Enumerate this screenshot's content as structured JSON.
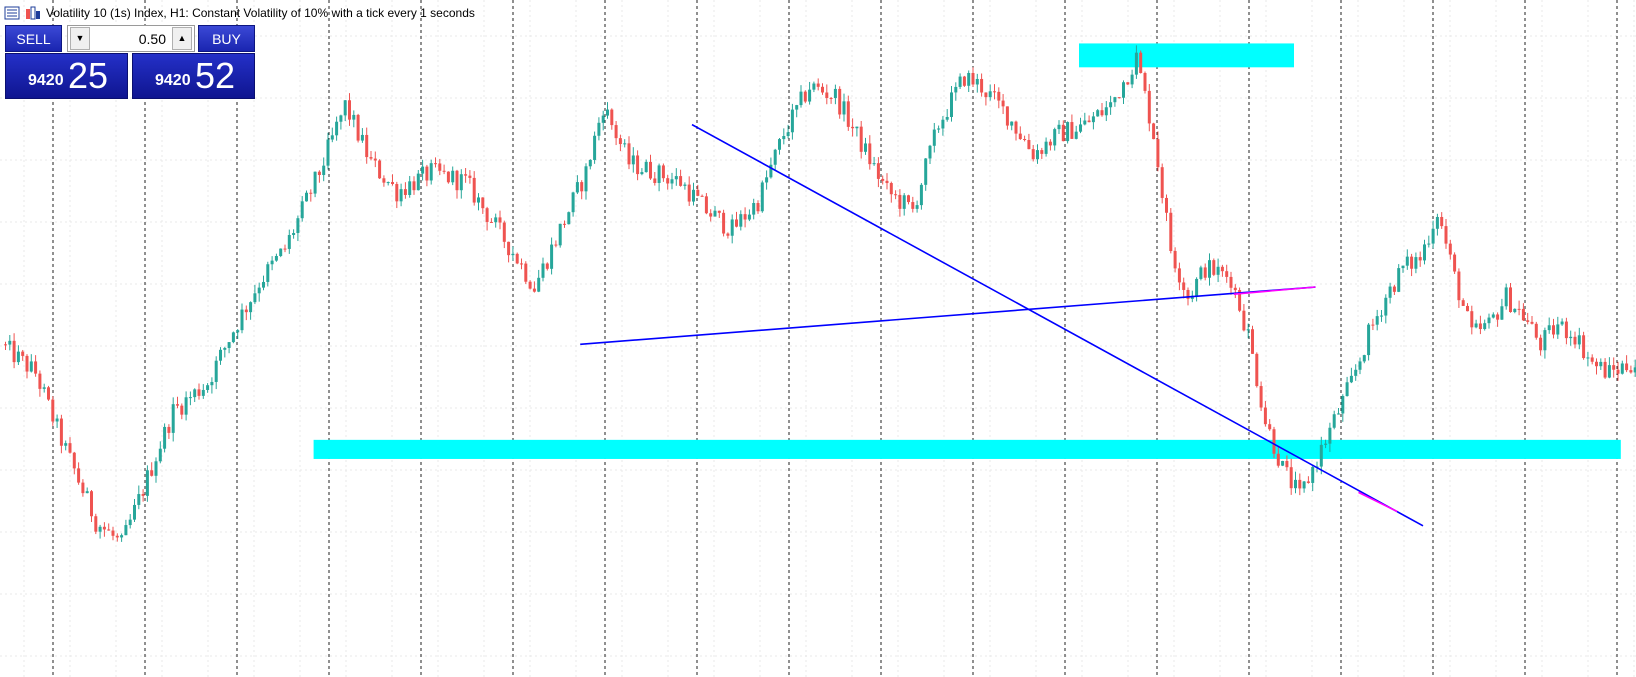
{
  "header": {
    "title": "Volatility 10 (1s) Index, H1:  Constant Volatility of 10% with a tick every 1 seconds"
  },
  "trade_panel": {
    "sell_label": "SELL",
    "buy_label": "BUY",
    "lot_value": "0.50",
    "sell_price_prefix": "9420",
    "sell_price_main": "25",
    "buy_price_prefix": "9420",
    "buy_price_main": "52"
  },
  "colors": {
    "background": "#ffffff",
    "bull_candle": "#26a69a",
    "bear_candle": "#ef5350",
    "trendline": "#0000ff",
    "zone": "#00ffff",
    "highlight": "#ff00ff",
    "panel_button": "#1a25b0"
  },
  "chart_data": {
    "type": "candlestick",
    "title": "Volatility 10 (1s) Index, H1",
    "xlabel": "",
    "ylabel": "",
    "grid": true,
    "y_range": [
      -0.22,
      1.12
    ],
    "trend_segments": [
      {
        "t": 0,
        "y": 0.42
      },
      {
        "t": 8,
        "y": 0.36
      },
      {
        "t": 14,
        "y": 0.22
      },
      {
        "t": 22,
        "y": 0.05
      },
      {
        "t": 28,
        "y": 0.0
      },
      {
        "t": 34,
        "y": 0.14
      },
      {
        "t": 40,
        "y": 0.28
      },
      {
        "t": 48,
        "y": 0.34
      },
      {
        "t": 54,
        "y": 0.45
      },
      {
        "t": 60,
        "y": 0.55
      },
      {
        "t": 66,
        "y": 0.62
      },
      {
        "t": 74,
        "y": 0.78
      },
      {
        "t": 80,
        "y": 0.92
      },
      {
        "t": 86,
        "y": 0.8
      },
      {
        "t": 92,
        "y": 0.74
      },
      {
        "t": 100,
        "y": 0.78
      },
      {
        "t": 108,
        "y": 0.76
      },
      {
        "t": 114,
        "y": 0.68
      },
      {
        "t": 120,
        "y": 0.6
      },
      {
        "t": 124,
        "y": 0.54
      },
      {
        "t": 130,
        "y": 0.66
      },
      {
        "t": 136,
        "y": 0.78
      },
      {
        "t": 140,
        "y": 0.92
      },
      {
        "t": 146,
        "y": 0.8
      },
      {
        "t": 152,
        "y": 0.78
      },
      {
        "t": 158,
        "y": 0.76
      },
      {
        "t": 164,
        "y": 0.7
      },
      {
        "t": 170,
        "y": 0.66
      },
      {
        "t": 176,
        "y": 0.72
      },
      {
        "t": 182,
        "y": 0.86
      },
      {
        "t": 188,
        "y": 0.96
      },
      {
        "t": 194,
        "y": 0.94
      },
      {
        "t": 200,
        "y": 0.84
      },
      {
        "t": 206,
        "y": 0.74
      },
      {
        "t": 212,
        "y": 0.7
      },
      {
        "t": 218,
        "y": 0.88
      },
      {
        "t": 224,
        "y": 0.98
      },
      {
        "t": 228,
        "y": 0.96
      },
      {
        "t": 234,
        "y": 0.9
      },
      {
        "t": 240,
        "y": 0.82
      },
      {
        "t": 246,
        "y": 0.86
      },
      {
        "t": 252,
        "y": 0.88
      },
      {
        "t": 258,
        "y": 0.92
      },
      {
        "t": 264,
        "y": 1.02
      },
      {
        "t": 268,
        "y": 0.86
      },
      {
        "t": 272,
        "y": 0.62
      },
      {
        "t": 276,
        "y": 0.52
      },
      {
        "t": 280,
        "y": 0.58
      },
      {
        "t": 286,
        "y": 0.56
      },
      {
        "t": 290,
        "y": 0.44
      },
      {
        "t": 294,
        "y": 0.26
      },
      {
        "t": 298,
        "y": 0.16
      },
      {
        "t": 302,
        "y": 0.1
      },
      {
        "t": 306,
        "y": 0.18
      },
      {
        "t": 310,
        "y": 0.26
      },
      {
        "t": 314,
        "y": 0.34
      },
      {
        "t": 318,
        "y": 0.44
      },
      {
        "t": 322,
        "y": 0.52
      },
      {
        "t": 326,
        "y": 0.58
      },
      {
        "t": 330,
        "y": 0.6
      },
      {
        "t": 334,
        "y": 0.7
      },
      {
        "t": 338,
        "y": 0.56
      },
      {
        "t": 342,
        "y": 0.44
      },
      {
        "t": 346,
        "y": 0.46
      },
      {
        "t": 350,
        "y": 0.52
      },
      {
        "t": 354,
        "y": 0.48
      },
      {
        "t": 358,
        "y": 0.42
      },
      {
        "t": 362,
        "y": 0.46
      },
      {
        "t": 366,
        "y": 0.44
      },
      {
        "t": 370,
        "y": 0.38
      },
      {
        "t": 374,
        "y": 0.36
      },
      {
        "t": 379,
        "y": 0.38
      }
    ],
    "trendlines": [
      {
        "from": [
          134,
          0.42
        ],
        "to": [
          305,
          0.54
        ]
      },
      {
        "from": [
          160,
          0.88
        ],
        "to": [
          330,
          0.04
        ]
      }
    ],
    "zones": [
      {
        "t_start": 72,
        "t_end": 376,
        "y_low": 0.18,
        "y_high": 0.22
      },
      {
        "t_start": 250,
        "t_end": 300,
        "y_low": 1.0,
        "y_high": 1.05
      }
    ]
  }
}
